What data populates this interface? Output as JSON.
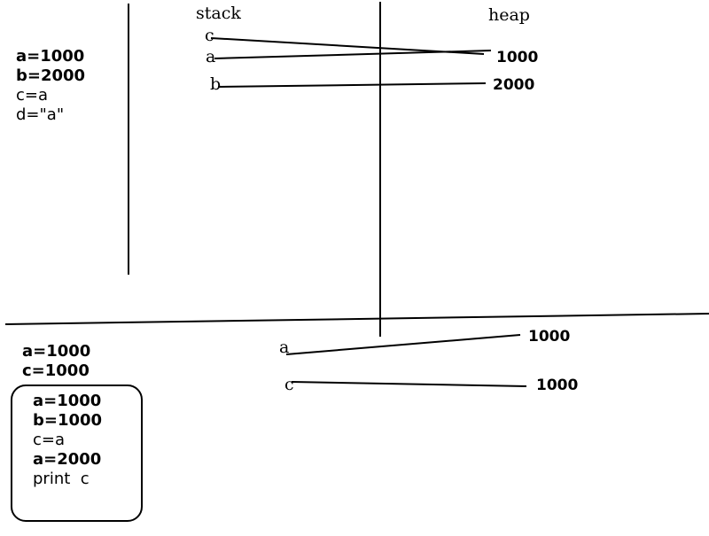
{
  "top_code": [
    "a=1000",
    "b=2000",
    "c=a",
    "d=\"a\""
  ],
  "stack_header": "stack",
  "heap_header": "heap",
  "stack_vars": [
    "c",
    "a",
    "b"
  ],
  "heap_values": [
    "1000",
    "2000"
  ],
  "bottom_code": [
    "a=1000",
    "c=1000"
  ],
  "box_code": [
    "a=1000",
    "b=1000",
    "c=a",
    "a=2000",
    "print  c"
  ],
  "bottom_vars": [
    "a",
    "c"
  ],
  "bottom_values": [
    "1000",
    "1000"
  ]
}
